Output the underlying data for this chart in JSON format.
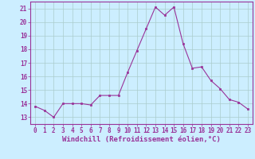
{
  "x": [
    0,
    1,
    2,
    3,
    4,
    5,
    6,
    7,
    8,
    9,
    10,
    11,
    12,
    13,
    14,
    15,
    16,
    17,
    18,
    19,
    20,
    21,
    22,
    23
  ],
  "y": [
    13.8,
    13.5,
    13.0,
    14.0,
    14.0,
    14.0,
    13.9,
    14.6,
    14.6,
    14.6,
    16.3,
    17.9,
    19.5,
    21.1,
    20.5,
    21.1,
    18.4,
    16.6,
    16.7,
    15.7,
    15.1,
    14.3,
    14.1,
    13.6
  ],
  "line_color": "#993399",
  "marker_color": "#993399",
  "bg_color": "#cceeff",
  "grid_color": "#aacccc",
  "xlabel": "Windchill (Refroidissement éolien,°C)",
  "xlabel_color": "#993399",
  "tick_color": "#993399",
  "ylim": [
    12.5,
    21.5
  ],
  "xlim": [
    -0.5,
    23.5
  ],
  "yticks": [
    13,
    14,
    15,
    16,
    17,
    18,
    19,
    20,
    21
  ],
  "xticks": [
    0,
    1,
    2,
    3,
    4,
    5,
    6,
    7,
    8,
    9,
    10,
    11,
    12,
    13,
    14,
    15,
    16,
    17,
    18,
    19,
    20,
    21,
    22,
    23
  ],
  "tick_fontsize": 5.5,
  "xlabel_fontsize": 6.5
}
